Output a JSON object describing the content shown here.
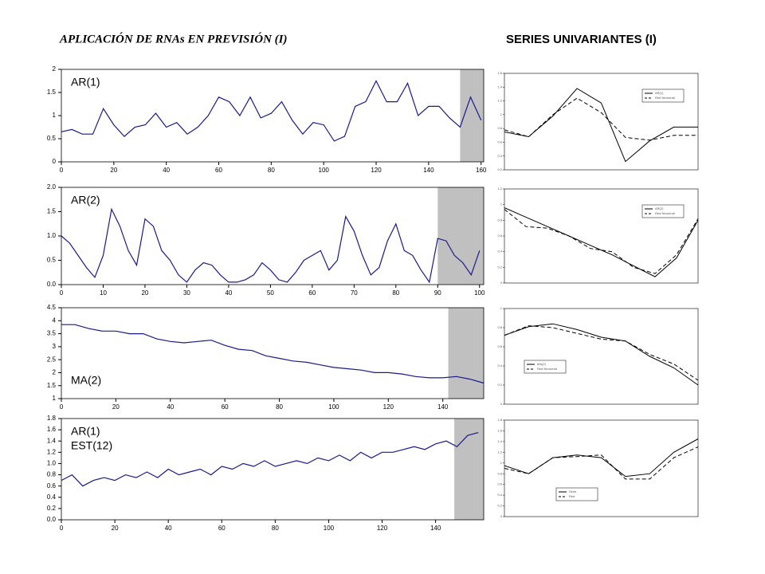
{
  "header": {
    "left": "APLICACIÓN DE RNAs EN PREVISIÓN  (I)",
    "right": "SERIES UNIVARIANTES (I)"
  },
  "chart_data": [
    {
      "type": "line",
      "labels": [
        "AR(1)"
      ],
      "color": "#1a1a8c",
      "forecast_start": 152,
      "x": [
        0,
        4,
        8,
        12,
        16,
        20,
        24,
        28,
        32,
        36,
        40,
        44,
        48,
        52,
        56,
        60,
        64,
        68,
        72,
        76,
        80,
        84,
        88,
        92,
        96,
        100,
        104,
        108,
        112,
        116,
        120,
        124,
        128,
        132,
        136,
        140,
        144,
        148,
        152,
        156,
        160
      ],
      "values": [
        0.65,
        0.7,
        0.6,
        0.6,
        1.15,
        0.8,
        0.55,
        0.75,
        0.8,
        1.05,
        0.75,
        0.85,
        0.6,
        0.75,
        1.0,
        1.4,
        1.3,
        1.0,
        1.4,
        0.95,
        1.05,
        1.3,
        0.9,
        0.6,
        0.85,
        0.8,
        0.45,
        0.55,
        1.2,
        1.3,
        1.75,
        1.3,
        1.3,
        1.7,
        1.0,
        1.2,
        1.2,
        0.95,
        0.75,
        1.4,
        0.9
      ],
      "xlim": [
        0,
        161
      ],
      "xticks": [
        0,
        20,
        40,
        60,
        80,
        100,
        120,
        140,
        160
      ],
      "ylim": [
        0,
        2
      ],
      "yticks": [
        0,
        0.5,
        1,
        1.5,
        2
      ]
    },
    {
      "type": "line",
      "labels": [
        "AR(2)"
      ],
      "color": "#1a1a8c",
      "forecast_start": 90,
      "x": [
        0,
        2,
        4,
        6,
        8,
        10,
        12,
        14,
        16,
        18,
        20,
        22,
        24,
        26,
        28,
        30,
        32,
        34,
        36,
        38,
        40,
        42,
        44,
        46,
        48,
        50,
        52,
        54,
        56,
        58,
        60,
        62,
        64,
        66,
        68,
        70,
        72,
        74,
        76,
        78,
        80,
        82,
        84,
        86,
        88,
        90,
        92,
        94,
        96,
        98,
        100
      ],
      "values": [
        1.0,
        0.85,
        0.6,
        0.35,
        0.15,
        0.6,
        1.55,
        1.2,
        0.7,
        0.4,
        1.35,
        1.2,
        0.7,
        0.5,
        0.2,
        0.05,
        0.3,
        0.45,
        0.4,
        0.2,
        0.05,
        0.05,
        0.1,
        0.2,
        0.45,
        0.3,
        0.1,
        0.05,
        0.25,
        0.5,
        0.6,
        0.7,
        0.3,
        0.5,
        1.4,
        1.1,
        0.6,
        0.2,
        0.35,
        0.9,
        1.25,
        0.7,
        0.6,
        0.3,
        0.05,
        0.95,
        0.9,
        0.6,
        0.45,
        0.2,
        0.7
      ],
      "xlim": [
        0,
        101
      ],
      "xticks": [
        0,
        10,
        20,
        30,
        40,
        50,
        60,
        70,
        80,
        90,
        100
      ],
      "ylim": [
        0,
        2
      ],
      "yticks": [
        {
          "value": 0,
          "label": "0.0"
        },
        {
          "value": 0.5,
          "label": "0.5"
        },
        {
          "value": 1,
          "label": "1.0"
        },
        {
          "value": 1.5,
          "label": "1.5"
        },
        {
          "value": 2,
          "label": "2.0"
        }
      ]
    },
    {
      "type": "line",
      "labels": [
        "MA(2)"
      ],
      "color": "#1a1a8c",
      "forecast_start": 142,
      "label_at": "bottom",
      "x": [
        0,
        5,
        10,
        15,
        20,
        25,
        30,
        35,
        40,
        45,
        50,
        55,
        60,
        65,
        70,
        75,
        80,
        85,
        90,
        95,
        100,
        105,
        110,
        115,
        120,
        125,
        130,
        135,
        140,
        145,
        150,
        155
      ],
      "values": [
        3.85,
        3.85,
        3.7,
        3.6,
        3.6,
        3.5,
        3.5,
        3.3,
        3.2,
        3.15,
        3.2,
        3.25,
        3.05,
        2.9,
        2.85,
        2.65,
        2.55,
        2.45,
        2.4,
        2.3,
        2.2,
        2.15,
        2.1,
        2.0,
        2.0,
        1.95,
        1.85,
        1.8,
        1.8,
        1.85,
        1.75,
        1.6
      ],
      "xlim": [
        0,
        155
      ],
      "xticks": [
        0,
        20,
        40,
        60,
        80,
        100,
        120,
        140
      ],
      "ylim": [
        1,
        4.5
      ],
      "yticks": [
        1,
        1.5,
        2,
        2.5,
        3,
        3.5,
        4,
        4.5
      ]
    },
    {
      "type": "line",
      "labels": [
        "AR(1)",
        "EST(12)"
      ],
      "color": "#1a1a8c",
      "forecast_start": 147,
      "x": [
        0,
        4,
        8,
        12,
        16,
        20,
        24,
        28,
        32,
        36,
        40,
        44,
        48,
        52,
        56,
        60,
        64,
        68,
        72,
        76,
        80,
        84,
        88,
        92,
        96,
        100,
        104,
        108,
        112,
        116,
        120,
        124,
        128,
        132,
        136,
        140,
        144,
        148,
        152,
        156
      ],
      "values": [
        0.7,
        0.8,
        0.6,
        0.7,
        0.75,
        0.7,
        0.8,
        0.75,
        0.85,
        0.75,
        0.9,
        0.8,
        0.85,
        0.9,
        0.8,
        0.95,
        0.9,
        1.0,
        0.95,
        1.05,
        0.95,
        1.0,
        1.05,
        1.0,
        1.1,
        1.05,
        1.15,
        1.05,
        1.2,
        1.1,
        1.2,
        1.2,
        1.25,
        1.3,
        1.25,
        1.35,
        1.4,
        1.3,
        1.5,
        1.55
      ],
      "xlim": [
        0,
        158
      ],
      "xticks": [
        0,
        20,
        40,
        60,
        80,
        100,
        120,
        140
      ],
      "ylim": [
        0,
        1.8
      ],
      "yticks": [
        {
          "value": 0,
          "label": "0.0"
        },
        {
          "value": 0.2,
          "label": "0.2"
        },
        {
          "value": 0.4,
          "label": "0.4"
        },
        {
          "value": 0.6,
          "label": "0.6"
        },
        {
          "value": 0.8,
          "label": "0.8"
        },
        {
          "value": 1,
          "label": "1.0"
        },
        {
          "value": 1.2,
          "label": "1.2"
        },
        {
          "value": 1.4,
          "label": "1.4"
        },
        {
          "value": 1.6,
          "label": "1.6"
        },
        {
          "value": 1.8,
          "label": "1.8"
        }
      ]
    },
    {
      "type": "compare",
      "legend": "upper right",
      "series": [
        {
          "name": "AR(1)",
          "color": "#000",
          "dash": false,
          "values": [
            0.75,
            0.68,
            0.98,
            1.38,
            1.17,
            0.32,
            0.62,
            0.82,
            0.82
          ]
        },
        {
          "name": "Red Neuronal",
          "color": "#000",
          "dash": true,
          "values": [
            0.78,
            0.68,
            1.0,
            1.24,
            1.03,
            0.67,
            0.63,
            0.7,
            0.7
          ]
        }
      ],
      "ylim": [
        0.2,
        1.6
      ],
      "yticks": [
        0.2,
        0.4,
        0.6,
        0.8,
        1,
        1.2,
        1.4,
        1.6
      ]
    },
    {
      "type": "compare",
      "legend": "upper right",
      "series": [
        {
          "name": "AR(2)",
          "color": "#000",
          "dash": false,
          "values": [
            0.96,
            0.84,
            0.72,
            0.6,
            0.48,
            0.36,
            0.22,
            0.08,
            0.32,
            0.8
          ]
        },
        {
          "name": "Red Neuronal",
          "color": "#000",
          "dash": true,
          "values": [
            0.94,
            0.72,
            0.7,
            0.6,
            0.44,
            0.4,
            0.2,
            0.12,
            0.36,
            0.82
          ]
        }
      ],
      "ylim": [
        0,
        1.2
      ],
      "yticks": [
        0,
        0.2,
        0.4,
        0.6,
        0.8,
        1,
        1.2
      ]
    },
    {
      "type": "compare",
      "legend": "lower left",
      "series": [
        {
          "name": "MA(2)",
          "color": "#000",
          "dash": false,
          "values": [
            0.72,
            0.81,
            0.84,
            0.78,
            0.7,
            0.66,
            0.5,
            0.38,
            0.2
          ]
        },
        {
          "name": "Red Neuronal",
          "color": "#000",
          "dash": true,
          "values": [
            0.72,
            0.82,
            0.8,
            0.74,
            0.68,
            0.66,
            0.52,
            0.42,
            0.25
          ]
        }
      ],
      "ylim": [
        0,
        1
      ],
      "yticks": [
        0,
        0.2,
        0.4,
        0.6,
        0.8,
        1
      ]
    },
    {
      "type": "compare",
      "legend": "lower center",
      "series": [
        {
          "name": "Serie",
          "color": "#000",
          "dash": false,
          "values": [
            0.95,
            0.8,
            1.1,
            1.15,
            1.1,
            0.75,
            0.8,
            1.2,
            1.45
          ]
        },
        {
          "name": "Red",
          "color": "#000",
          "dash": true,
          "values": [
            0.9,
            0.8,
            1.1,
            1.12,
            1.15,
            0.7,
            0.7,
            1.1,
            1.3
          ]
        }
      ],
      "ylim": [
        0,
        1.8
      ],
      "yticks": [
        0,
        0.2,
        0.4,
        0.6,
        0.8,
        1,
        1.2,
        1.4,
        1.6,
        1.8
      ]
    }
  ]
}
